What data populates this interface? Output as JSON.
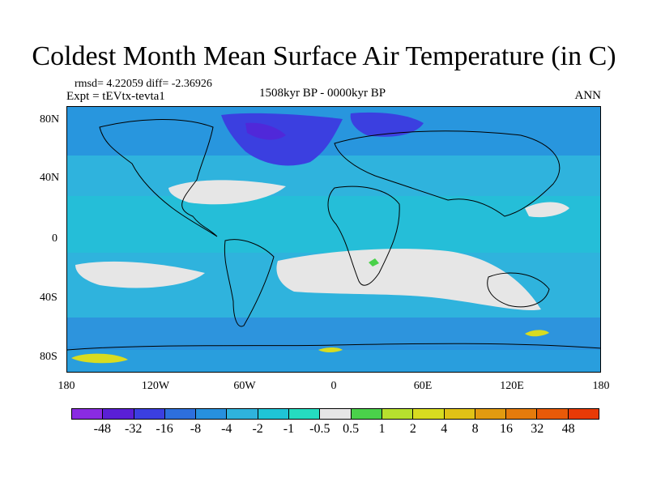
{
  "title": "Coldest Month Mean Surface Air Temperature (in C)",
  "stats": "rmsd= 4.22059 diff= -2.36926",
  "experiment": "Expt = tEVtx-tevta1",
  "period": "1508kyr BP - 0000kyr BP",
  "season": "ANN",
  "map": {
    "background_color": "#2fb3dd",
    "land_outline_color": "#000000",
    "lat_labels": [
      "80N",
      "40N",
      "0",
      "40S",
      "80S"
    ],
    "lon_labels": [
      "180",
      "120W",
      "60W",
      "0",
      "60E",
      "120E",
      "180"
    ]
  },
  "colorbar": {
    "colors": [
      "#8a2be2",
      "#5a1fd6",
      "#3b3fe0",
      "#2d6fdd",
      "#2790de",
      "#2fb3dd",
      "#1fc4d6",
      "#25dcc0",
      "#e6e6e6",
      "#4ad14a",
      "#b7e02e",
      "#d8dc20",
      "#e0c216",
      "#e29b10",
      "#e57b0c",
      "#e85a08",
      "#e83a06"
    ],
    "labels": [
      "-48",
      "-32",
      "-16",
      "-8",
      "-4",
      "-2",
      "-1",
      "-0.5",
      "0.5",
      "1",
      "2",
      "4",
      "8",
      "16",
      "32",
      "48"
    ]
  }
}
